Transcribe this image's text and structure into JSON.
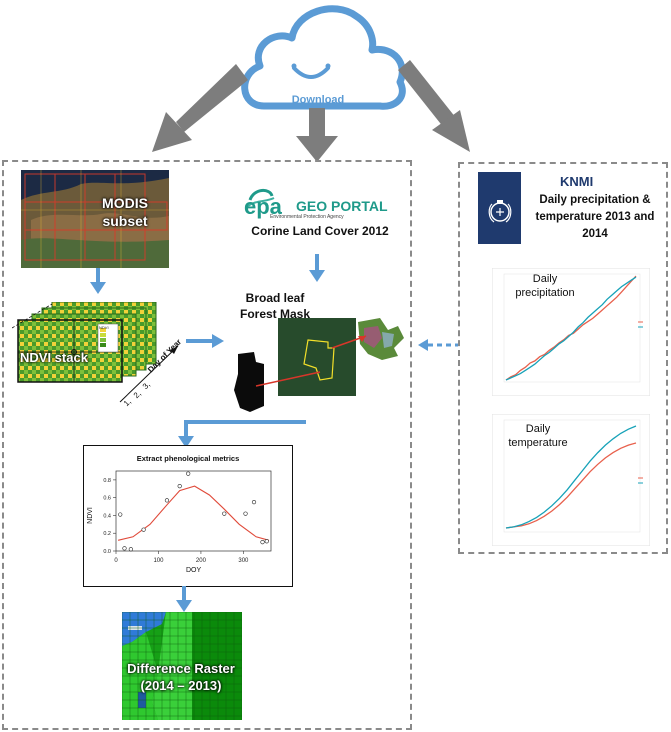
{
  "cloud": {
    "label": "Download"
  },
  "modis": {
    "label_line1": "MODIS",
    "label_line2": "subset"
  },
  "epa": {
    "logo_epa": "epa",
    "logo_portal": "GEO PORTAL",
    "logo_agency": "Environmental Protection Agency",
    "product": "Corine Land Cover 2012"
  },
  "mask": {
    "label_line1": "Broad leaf",
    "label_line2": "Forest Mask"
  },
  "ndvi": {
    "label": "NDVI stack",
    "axis_title": "Day of Year",
    "axis_ticks": [
      "1,",
      "2,",
      "3,"
    ],
    "legend_title": "NDVI"
  },
  "phenology": {
    "title": "Extract phenological metrics",
    "xlabel": "DOY",
    "ylabel": "NDVI",
    "xticks": [
      "0",
      "100",
      "200",
      "300"
    ],
    "yticks": [
      "0.0",
      "0.2",
      "0.4",
      "0.6",
      "0.8"
    ]
  },
  "diff_raster": {
    "label_line1": "Difference Raster",
    "label_line2": "(2014 – 2013)"
  },
  "knmi": {
    "logo": "KNMI",
    "line1": "Daily precipitation &",
    "line2": "temperature 2013 and",
    "line3": "2014",
    "precip_label_line1": "Daily",
    "precip_label_line2": "precipitation",
    "temp_label_line1": "Daily",
    "temp_label_line2": "temperature"
  },
  "colors": {
    "arrow_gray": "#7d7d7d",
    "arrow_blue": "#5b9bd5",
    "cloud_stroke": "#5b9bd5",
    "knmi_navy": "#1f3a6e",
    "series_red": "#e8604c",
    "series_teal": "#17a2b8"
  },
  "chart_data": [
    {
      "type": "scatter",
      "title": "Extract phenological metrics",
      "xlabel": "DOY",
      "ylabel": "NDVI",
      "xlim": [
        0,
        365
      ],
      "ylim": [
        0,
        0.9
      ],
      "points": [
        [
          10,
          0.41
        ],
        [
          20,
          0.03
        ],
        [
          35,
          0.02
        ],
        [
          65,
          0.24
        ],
        [
          120,
          0.57
        ],
        [
          150,
          0.73
        ],
        [
          170,
          0.87
        ],
        [
          255,
          0.42
        ],
        [
          305,
          0.42
        ],
        [
          325,
          0.55
        ],
        [
          345,
          0.1
        ],
        [
          355,
          0.11
        ]
      ],
      "fitted_curve": [
        [
          5,
          0.12
        ],
        [
          40,
          0.16
        ],
        [
          80,
          0.3
        ],
        [
          120,
          0.52
        ],
        [
          150,
          0.68
        ],
        [
          185,
          0.73
        ],
        [
          220,
          0.63
        ],
        [
          255,
          0.47
        ],
        [
          290,
          0.3
        ],
        [
          330,
          0.16
        ],
        [
          360,
          0.12
        ]
      ]
    },
    {
      "type": "line",
      "title": "Daily precipitation",
      "series": [
        {
          "values": [
            0,
            3,
            5,
            9,
            12,
            16,
            18,
            22,
            24,
            28,
            31,
            35,
            38,
            42,
            44,
            48,
            52,
            55,
            58,
            62,
            66,
            70,
            74,
            78,
            83,
            88,
            93,
            98
          ]
        },
        {
          "values": [
            0,
            2,
            4,
            6,
            9,
            12,
            15,
            19,
            23,
            26,
            30,
            34,
            37,
            41,
            45,
            50,
            54,
            59,
            63,
            67,
            71,
            76,
            80,
            84,
            88,
            91,
            94,
            97
          ]
        }
      ]
    },
    {
      "type": "line",
      "title": "Daily temperature",
      "series": [
        {
          "values": [
            0,
            1,
            2,
            4,
            7,
            11,
            16,
            22,
            29,
            37,
            45,
            53,
            60,
            66,
            71,
            75,
            78,
            80
          ]
        },
        {
          "values": [
            0,
            1,
            3,
            6,
            10,
            15,
            21,
            28,
            36,
            45,
            54,
            63,
            71,
            78,
            84,
            89,
            93,
            96
          ]
        }
      ]
    }
  ]
}
